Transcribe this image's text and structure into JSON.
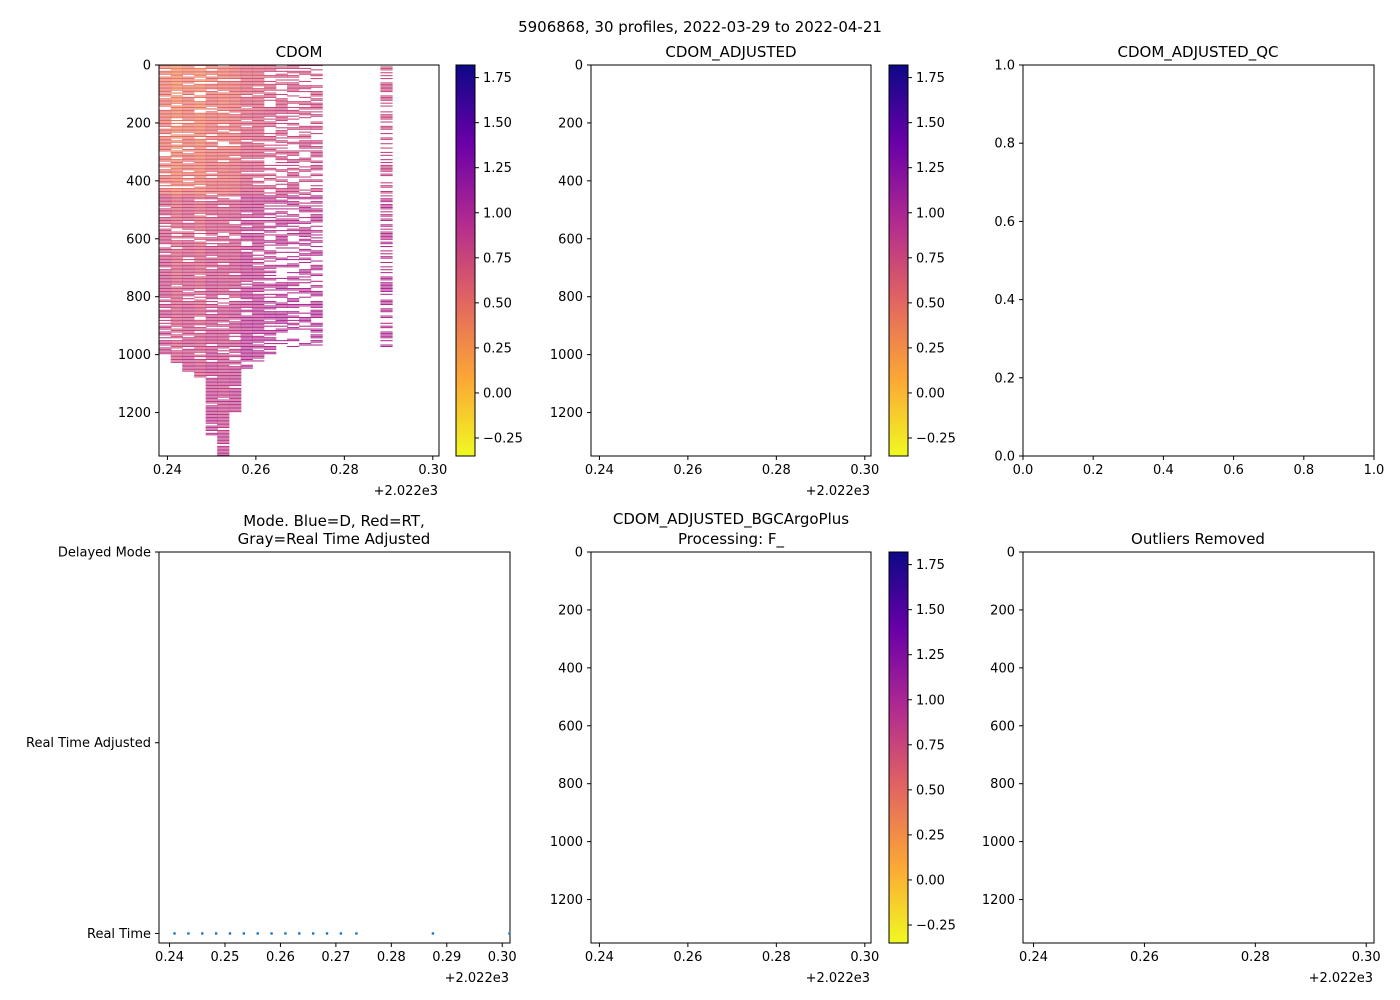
{
  "figure": {
    "suptitle": "5906868, 30 profiles, 2022-03-29 to 2022-04-21"
  },
  "colorbar": {
    "ticks": [
      "1.75",
      "1.50",
      "1.25",
      "1.00",
      "0.75",
      "0.50",
      "0.25",
      "0.00",
      "−0.25"
    ],
    "tick_values": [
      1.75,
      1.5,
      1.25,
      1.0,
      0.75,
      0.5,
      0.25,
      0.0,
      -0.25
    ],
    "range": [
      -0.35,
      1.82
    ],
    "colormap": "plasma_r",
    "colors": [
      "#f0f921",
      "#fca636",
      "#e16462",
      "#b12a90",
      "#6a00a8",
      "#0d0887"
    ]
  },
  "chart_data": [
    {
      "id": "cdom",
      "type": "heatmap",
      "title": "CDOM",
      "xticks": [
        "0.24",
        "0.26",
        "0.28",
        "0.30"
      ],
      "xtick_values": [
        0.24,
        0.26,
        0.28,
        0.3
      ],
      "xoffset": "+2.022e3",
      "xlim": [
        0.2381,
        0.3014
      ],
      "yticks": [
        "0",
        "200",
        "400",
        "600",
        "800",
        "1000",
        "1200"
      ],
      "ytick_values": [
        0,
        200,
        400,
        600,
        800,
        1000,
        1200
      ],
      "ylim": [
        1350,
        0
      ],
      "profiles": [
        {
          "x": 0.2395,
          "depth": 1000,
          "value": 0.65
        },
        {
          "x": 0.2421,
          "depth": 1030,
          "value": 0.55
        },
        {
          "x": 0.2447,
          "depth": 1070,
          "value": 0.62
        },
        {
          "x": 0.2474,
          "depth": 1080,
          "value": 0.55
        },
        {
          "x": 0.25,
          "depth": 1280,
          "value": 0.65
        },
        {
          "x": 0.2526,
          "depth": 1350,
          "value": 0.62
        },
        {
          "x": 0.2553,
          "depth": 1200,
          "value": 0.65
        },
        {
          "x": 0.2579,
          "depth": 1050,
          "value": 0.75
        },
        {
          "x": 0.2605,
          "depth": 1030,
          "value": 0.75
        },
        {
          "x": 0.2632,
          "depth": 1000,
          "value": 0.78
        },
        {
          "x": 0.2658,
          "depth": 980,
          "value": 0.8
        },
        {
          "x": 0.2684,
          "depth": 980,
          "value": 0.8
        },
        {
          "x": 0.2711,
          "depth": 970,
          "value": 0.8
        },
        {
          "x": 0.2737,
          "depth": 980,
          "value": 0.8
        },
        {
          "x": 0.2895,
          "depth": 990,
          "value": 0.8
        }
      ]
    },
    {
      "id": "cdom_adjusted",
      "type": "heatmap",
      "title": "CDOM_ADJUSTED",
      "xticks": [
        "0.24",
        "0.26",
        "0.28",
        "0.30"
      ],
      "xtick_values": [
        0.24,
        0.26,
        0.28,
        0.3
      ],
      "xoffset": "+2.022e3",
      "xlim": [
        0.2381,
        0.3014
      ],
      "yticks": [
        "0",
        "200",
        "400",
        "600",
        "800",
        "1000",
        "1200"
      ],
      "ytick_values": [
        0,
        200,
        400,
        600,
        800,
        1000,
        1200
      ],
      "ylim": [
        1350,
        0
      ],
      "profiles": []
    },
    {
      "id": "cdom_adjusted_qc",
      "type": "scatter",
      "title": "CDOM_ADJUSTED_QC",
      "xticks": [
        "0.0",
        "0.2",
        "0.4",
        "0.6",
        "0.8",
        "1.0"
      ],
      "xtick_values": [
        0,
        0.2,
        0.4,
        0.6,
        0.8,
        1.0
      ],
      "yticks": [
        "0.0",
        "0.2",
        "0.4",
        "0.6",
        "0.8",
        "1.0"
      ],
      "ytick_values": [
        0,
        0.2,
        0.4,
        0.6,
        0.8,
        1.0
      ],
      "xlim": [
        0,
        1
      ],
      "ylim": [
        0,
        1
      ],
      "points": []
    },
    {
      "id": "mode",
      "type": "scatter",
      "title_line1": "Mode. Blue=D, Red=RT,",
      "title_line2": "Gray=Real Time Adjusted",
      "xticks": [
        "0.24",
        "0.25",
        "0.26",
        "0.27",
        "0.28",
        "0.29",
        "0.30"
      ],
      "xtick_values": [
        0.24,
        0.25,
        0.26,
        0.27,
        0.28,
        0.29,
        0.3
      ],
      "xoffset": "+2.022e3",
      "xlim": [
        0.2381,
        0.3014
      ],
      "ycategories": [
        "Delayed Mode",
        "Real Time Adjusted",
        "Real Time"
      ],
      "ycategory_values": [
        2,
        1,
        0
      ],
      "ylim": [
        -0.05,
        2
      ],
      "points_x": [
        0.2409,
        0.2434,
        0.2459,
        0.2484,
        0.2509,
        0.2534,
        0.2559,
        0.2584,
        0.2609,
        0.2634,
        0.2659,
        0.2684,
        0.2709,
        0.2737,
        0.2875,
        0.3013
      ],
      "points_y": 0
    },
    {
      "id": "bgc_argo_plus",
      "type": "heatmap",
      "title_line1": "CDOM_ADJUSTED_BGCArgoPlus",
      "title_line2": "Processing: F_",
      "xticks": [
        "0.24",
        "0.26",
        "0.28",
        "0.30"
      ],
      "xtick_values": [
        0.24,
        0.26,
        0.28,
        0.3
      ],
      "xoffset": "+2.022e3",
      "xlim": [
        0.2381,
        0.3014
      ],
      "yticks": [
        "0",
        "200",
        "400",
        "600",
        "800",
        "1000",
        "1200"
      ],
      "ytick_values": [
        0,
        200,
        400,
        600,
        800,
        1000,
        1200
      ],
      "ylim": [
        1350,
        0
      ],
      "profiles": []
    },
    {
      "id": "outliers",
      "type": "heatmap",
      "title": "Outliers Removed",
      "xticks": [
        "0.24",
        "0.26",
        "0.28",
        "0.30"
      ],
      "xtick_values": [
        0.24,
        0.26,
        0.28,
        0.3
      ],
      "xoffset": "+2.022e3",
      "xlim": [
        0.2381,
        0.3014
      ],
      "yticks": [
        "0",
        "200",
        "400",
        "600",
        "800",
        "1000",
        "1200"
      ],
      "ytick_values": [
        0,
        200,
        400,
        600,
        800,
        1000,
        1200
      ],
      "ylim": [
        1350,
        0
      ],
      "profiles": []
    }
  ]
}
